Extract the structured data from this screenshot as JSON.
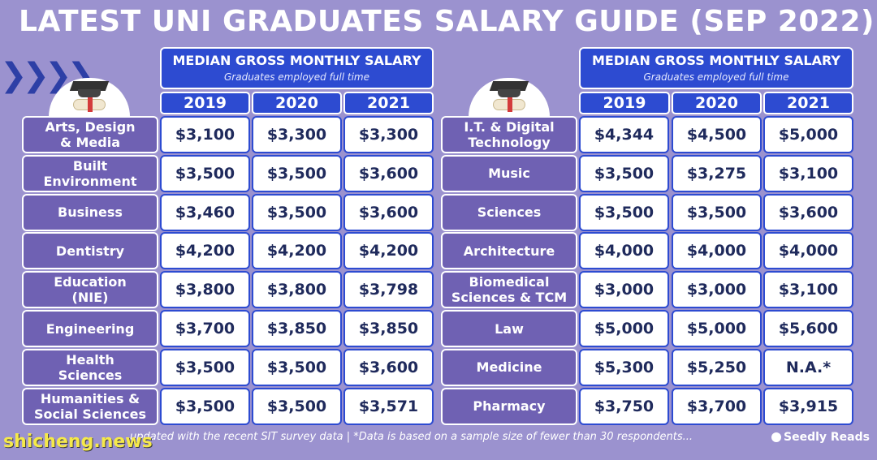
{
  "title": "LATEST UNI GRADUATES SALARY GUIDE (SEP 2022)",
  "header_main": "MEDIAN GROSS MONTHLY SALARY",
  "header_sub": "Graduates employed full time",
  "years": [
    "2019",
    "2020",
    "2021"
  ],
  "left_rows": [
    {
      "label": "Arts, Design\n& Media",
      "v": [
        "$3,100",
        "$3,300",
        "$3,300"
      ]
    },
    {
      "label": "Built\nEnvironment",
      "v": [
        "$3,500",
        "$3,500",
        "$3,600"
      ]
    },
    {
      "label": "Business",
      "v": [
        "$3,460",
        "$3,500",
        "$3,600"
      ]
    },
    {
      "label": "Dentistry",
      "v": [
        "$4,200",
        "$4,200",
        "$4,200"
      ]
    },
    {
      "label": "Education\n(NIE)",
      "v": [
        "$3,800",
        "$3,800",
        "$3,798"
      ]
    },
    {
      "label": "Engineering",
      "v": [
        "$3,700",
        "$3,850",
        "$3,850"
      ]
    },
    {
      "label": "Health\nSciences",
      "v": [
        "$3,500",
        "$3,500",
        "$3,600"
      ]
    },
    {
      "label": "Humanities &\nSocial Sciences",
      "v": [
        "$3,500",
        "$3,500",
        "$3,571"
      ]
    }
  ],
  "right_rows": [
    {
      "label": "I.T. & Digital\nTechnology",
      "v": [
        "$4,344",
        "$4,500",
        "$5,000"
      ]
    },
    {
      "label": "Music",
      "v": [
        "$3,500",
        "$3,275",
        "$3,100"
      ]
    },
    {
      "label": "Sciences",
      "v": [
        "$3,500",
        "$3,500",
        "$3,600"
      ]
    },
    {
      "label": "Architecture",
      "v": [
        "$4,000",
        "$4,000",
        "$4,000"
      ]
    },
    {
      "label": "Biomedical\nSciences & TCM",
      "v": [
        "$3,000",
        "$3,000",
        "$3,100"
      ]
    },
    {
      "label": "Law",
      "v": [
        "$5,000",
        "$5,000",
        "$5,600"
      ]
    },
    {
      "label": "Medicine",
      "v": [
        "$5,300",
        "$5,250",
        "N.A.*"
      ]
    },
    {
      "label": "Pharmacy",
      "v": [
        "$3,750",
        "$3,700",
        "$3,915"
      ]
    }
  ],
  "footer": "updated with the recent SIT survey data | *Data is based on a sample size of fewer than 30 respondents...",
  "watermark": "shicheng.news",
  "brand": "Seedly Reads",
  "colors": {
    "background": "#9b92cf",
    "header_blue": "#2d4bd1",
    "label_purple": "#6f61b3"
  }
}
